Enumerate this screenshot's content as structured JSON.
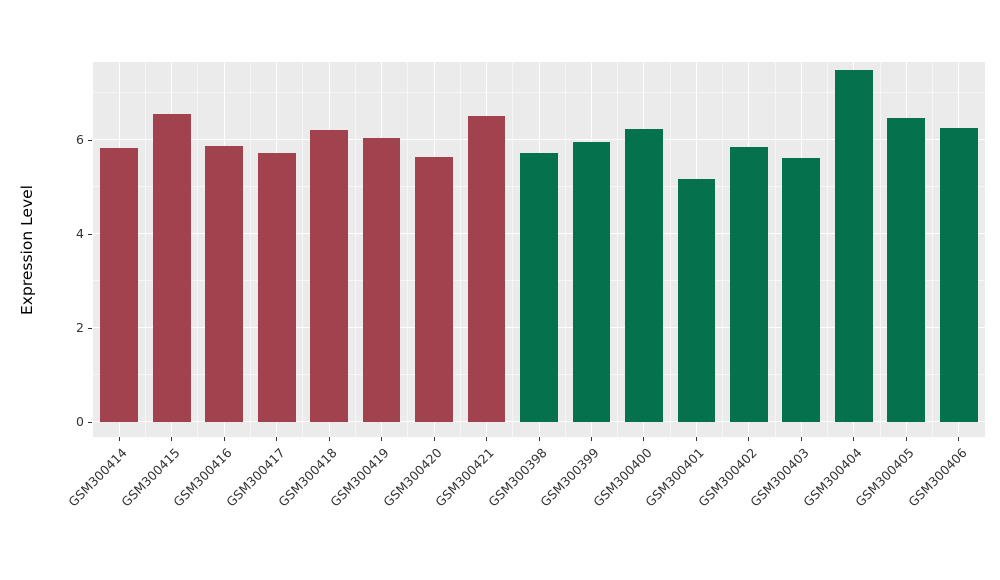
{
  "chart_data": {
    "type": "bar",
    "title": "",
    "xlabel": "",
    "ylabel": "Expression Level",
    "categories": [
      "GSM300414",
      "GSM300415",
      "GSM300416",
      "GSM300417",
      "GSM300418",
      "GSM300419",
      "GSM300420",
      "GSM300421",
      "GSM300398",
      "GSM300399",
      "GSM300400",
      "GSM300401",
      "GSM300402",
      "GSM300403",
      "GSM300404",
      "GSM300405",
      "GSM300406"
    ],
    "values": [
      5.83,
      6.55,
      5.87,
      5.72,
      6.21,
      6.04,
      5.64,
      6.51,
      5.72,
      5.96,
      6.23,
      5.17,
      5.85,
      5.62,
      7.49,
      6.47,
      6.26
    ],
    "groups": [
      "red",
      "red",
      "red",
      "red",
      "red",
      "red",
      "red",
      "red",
      "green",
      "green",
      "green",
      "green",
      "green",
      "green",
      "green",
      "green",
      "green"
    ],
    "group_colors": {
      "red": "#A1424E",
      "green": "#06714D"
    },
    "yticks": [
      0,
      2,
      4,
      6
    ],
    "minor_yticks": [
      1,
      3,
      5,
      7
    ],
    "ylim": [
      0,
      7.66
    ],
    "bar_width_fraction": 0.72,
    "panel_background": "#EBEBEB",
    "grid_color": "#FFFFFF",
    "grid": true,
    "legend_position": "none"
  }
}
